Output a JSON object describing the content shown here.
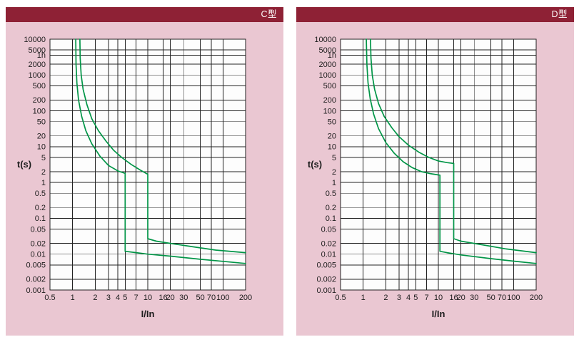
{
  "page": {
    "background": "#ffffff"
  },
  "theme": {
    "panel_pink": "#eac7d2",
    "header_maroon": "#8e2135",
    "grid_black": "#222222",
    "plot_white": "#fdfdfd",
    "curve_green": "#019547",
    "text_dark": "#1d1d1d"
  },
  "panels": [
    {
      "name": "c-type-panel"
    },
    {
      "name": "d-type-panel"
    }
  ],
  "chart_data": [
    {
      "type": "line",
      "title": "C型",
      "xlabel": "I/In",
      "ylabel": "t(s)",
      "x_scale": "log",
      "y_scale": "log",
      "xlim": [
        0.5,
        200
      ],
      "ylim": [
        0.001,
        10000
      ],
      "grid": true,
      "legend": "none",
      "x_ticks": [
        {
          "v": 0.5,
          "label": "0.5"
        },
        {
          "v": 1,
          "label": "1"
        },
        {
          "v": 2,
          "label": "2"
        },
        {
          "v": 3,
          "label": "3"
        },
        {
          "v": 4,
          "label": "4"
        },
        {
          "v": 5,
          "label": "5"
        },
        {
          "v": 7,
          "label": "7"
        },
        {
          "v": 10,
          "label": "10"
        },
        {
          "v": 16,
          "label": "16"
        },
        {
          "v": 20,
          "label": "20"
        },
        {
          "v": 30,
          "label": "30"
        },
        {
          "v": 50,
          "label": "50"
        },
        {
          "v": 70,
          "label": "70"
        },
        {
          "v": 100,
          "label": "100"
        },
        {
          "v": 200,
          "label": "200"
        }
      ],
      "y_ticks": [
        {
          "v": 10000,
          "label": "10000"
        },
        {
          "v": 5000,
          "label": "5000"
        },
        {
          "v": 3600,
          "label": "1h"
        },
        {
          "v": 2000,
          "label": "2000"
        },
        {
          "v": 1000,
          "label": "1000"
        },
        {
          "v": 500,
          "label": "500"
        },
        {
          "v": 200,
          "label": "200"
        },
        {
          "v": 100,
          "label": "100"
        },
        {
          "v": 50,
          "label": "50"
        },
        {
          "v": 20,
          "label": "20"
        },
        {
          "v": 10,
          "label": "10"
        },
        {
          "v": 5,
          "label": "5"
        },
        {
          "v": 2,
          "label": "2"
        },
        {
          "v": 1,
          "label": "1"
        },
        {
          "v": 0.5,
          "label": "0.5"
        },
        {
          "v": 0.2,
          "label": "0.2"
        },
        {
          "v": 0.1,
          "label": "0.1"
        },
        {
          "v": 0.05,
          "label": "0.05"
        },
        {
          "v": 0.02,
          "label": "0.02"
        },
        {
          "v": 0.01,
          "label": "0.01"
        },
        {
          "v": 0.005,
          "label": "0.005"
        },
        {
          "v": 0.002,
          "label": "0.002"
        },
        {
          "v": 0.001,
          "label": "0.001"
        }
      ],
      "series": [
        {
          "name": "upper-trip-limit",
          "color": "#019547",
          "points": [
            [
              1.25,
              10000
            ],
            [
              1.26,
              3000
            ],
            [
              1.3,
              1000
            ],
            [
              1.38,
              400
            ],
            [
              1.55,
              150
            ],
            [
              1.8,
              60
            ],
            [
              2.2,
              28
            ],
            [
              2.8,
              14
            ],
            [
              3.5,
              8
            ],
            [
              4.5,
              5
            ],
            [
              6,
              3.2
            ],
            [
              8,
              2.2
            ],
            [
              10,
              1.7
            ],
            [
              10,
              0.027
            ],
            [
              13,
              0.023
            ],
            [
              20,
              0.02
            ],
            [
              40,
              0.016
            ],
            [
              80,
              0.013
            ],
            [
              200,
              0.011
            ]
          ]
        },
        {
          "name": "lower-trip-limit",
          "color": "#019547",
          "points": [
            [
              1.1,
              10000
            ],
            [
              1.11,
              2000
            ],
            [
              1.14,
              600
            ],
            [
              1.2,
              200
            ],
            [
              1.32,
              70
            ],
            [
              1.5,
              28
            ],
            [
              1.8,
              12
            ],
            [
              2.3,
              5.5
            ],
            [
              3,
              3
            ],
            [
              4,
              2.1
            ],
            [
              5,
              1.8
            ],
            [
              5,
              0.012
            ],
            [
              7,
              0.011
            ],
            [
              10,
              0.01
            ],
            [
              20,
              0.0088
            ],
            [
              50,
              0.0072
            ],
            [
              100,
              0.0063
            ],
            [
              200,
              0.0055
            ]
          ]
        }
      ]
    },
    {
      "type": "line",
      "title": "D型",
      "xlabel": "I/In",
      "ylabel": "t(s)",
      "x_scale": "log",
      "y_scale": "log",
      "xlim": [
        0.5,
        200
      ],
      "ylim": [
        0.001,
        10000
      ],
      "grid": true,
      "legend": "none",
      "x_ticks": [
        {
          "v": 0.5,
          "label": "0.5"
        },
        {
          "v": 1,
          "label": "1"
        },
        {
          "v": 2,
          "label": "2"
        },
        {
          "v": 3,
          "label": "3"
        },
        {
          "v": 4,
          "label": "4"
        },
        {
          "v": 5,
          "label": "5"
        },
        {
          "v": 7,
          "label": "7"
        },
        {
          "v": 10,
          "label": "10"
        },
        {
          "v": 16,
          "label": "16"
        },
        {
          "v": 20,
          "label": "20"
        },
        {
          "v": 30,
          "label": "30"
        },
        {
          "v": 50,
          "label": "50"
        },
        {
          "v": 70,
          "label": "70"
        },
        {
          "v": 100,
          "label": "100"
        },
        {
          "v": 200,
          "label": "200"
        }
      ],
      "y_ticks": [
        {
          "v": 10000,
          "label": "10000"
        },
        {
          "v": 5000,
          "label": "5000"
        },
        {
          "v": 3600,
          "label": "1h"
        },
        {
          "v": 2000,
          "label": "2000"
        },
        {
          "v": 1000,
          "label": "1000"
        },
        {
          "v": 500,
          "label": "500"
        },
        {
          "v": 200,
          "label": "200"
        },
        {
          "v": 100,
          "label": "100"
        },
        {
          "v": 50,
          "label": "50"
        },
        {
          "v": 20,
          "label": "20"
        },
        {
          "v": 10,
          "label": "10"
        },
        {
          "v": 5,
          "label": "5"
        },
        {
          "v": 2,
          "label": "2"
        },
        {
          "v": 1,
          "label": "1"
        },
        {
          "v": 0.5,
          "label": "0.5"
        },
        {
          "v": 0.2,
          "label": "0.2"
        },
        {
          "v": 0.1,
          "label": "0.1"
        },
        {
          "v": 0.05,
          "label": "0.05"
        },
        {
          "v": 0.02,
          "label": "0.02"
        },
        {
          "v": 0.01,
          "label": "0.01"
        },
        {
          "v": 0.005,
          "label": "0.005"
        },
        {
          "v": 0.002,
          "label": "0.002"
        },
        {
          "v": 0.001,
          "label": "0.001"
        }
      ],
      "series": [
        {
          "name": "upper-trip-limit",
          "color": "#019547",
          "points": [
            [
              1.25,
              10000
            ],
            [
              1.27,
              3000
            ],
            [
              1.32,
              1000
            ],
            [
              1.42,
              400
            ],
            [
              1.6,
              160
            ],
            [
              1.9,
              70
            ],
            [
              2.4,
              34
            ],
            [
              3,
              19
            ],
            [
              4,
              11
            ],
            [
              5.5,
              7
            ],
            [
              7.5,
              5
            ],
            [
              10,
              4
            ],
            [
              13,
              3.6
            ],
            [
              16,
              3.4
            ],
            [
              16,
              0.027
            ],
            [
              20,
              0.023
            ],
            [
              40,
              0.018
            ],
            [
              80,
              0.014
            ],
            [
              200,
              0.011
            ]
          ]
        },
        {
          "name": "lower-trip-limit",
          "color": "#019547",
          "points": [
            [
              1.1,
              10000
            ],
            [
              1.12,
              2000
            ],
            [
              1.16,
              600
            ],
            [
              1.24,
              220
            ],
            [
              1.38,
              80
            ],
            [
              1.6,
              32
            ],
            [
              2,
              13
            ],
            [
              2.6,
              6.5
            ],
            [
              3.4,
              3.8
            ],
            [
              4.5,
              2.6
            ],
            [
              6,
              2
            ],
            [
              8,
              1.75
            ],
            [
              10.5,
              1.6
            ],
            [
              10.5,
              0.012
            ],
            [
              13,
              0.011
            ],
            [
              20,
              0.0095
            ],
            [
              50,
              0.0075
            ],
            [
              100,
              0.0064
            ],
            [
              200,
              0.0055
            ]
          ]
        }
      ]
    }
  ]
}
